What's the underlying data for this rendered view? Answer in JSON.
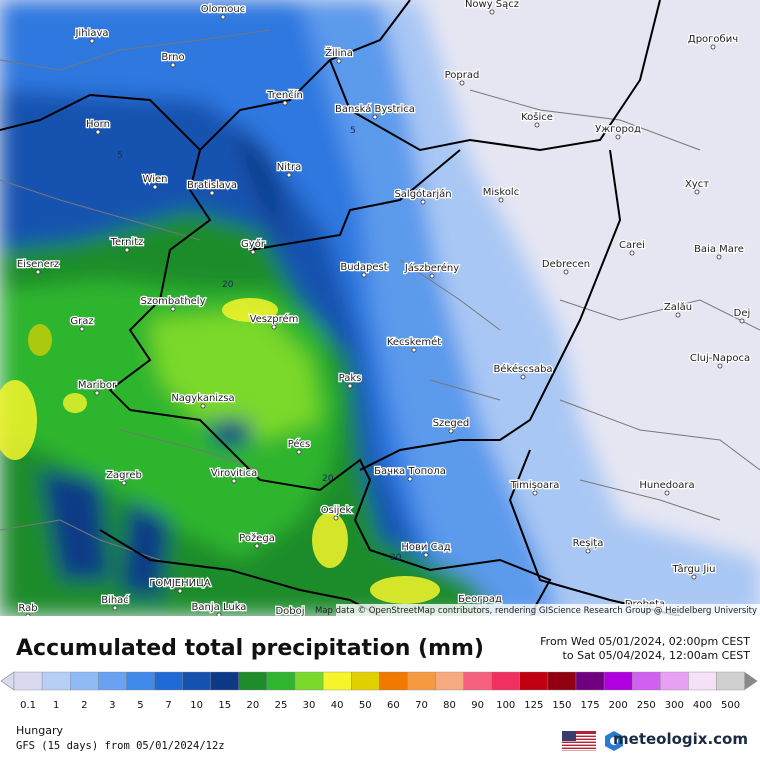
{
  "map": {
    "cities": [
      "Olomouc",
      "Nowy Sącz",
      "Jihlava",
      "Žilina",
      "Дрогобич",
      "Brno",
      "Poprad",
      "Trenčín",
      "Banská Bystrica",
      "Horn",
      "Košice",
      "Ужгород",
      "Nitra",
      "Wien",
      "Bratislava",
      "Salgótarján",
      "Miskolc",
      "Хуст",
      "Ternitz",
      "Győr",
      "Carei",
      "Baia Mare",
      "Eisenerz",
      "Budapest",
      "Jászberény",
      "Debrecen",
      "Szombathely",
      "Zalău",
      "Graz",
      "Veszprém",
      "Dej",
      "Kecskemét",
      "Cluj-Napoca",
      "Maribor",
      "Paks",
      "Békéscsaba",
      "Nagykanizsa",
      "Szeged",
      "Pécs",
      "Zagreb",
      "Virovitica",
      "Бачка Топола",
      "Timișoara",
      "Hunedoara",
      "Osijek",
      "Požega",
      "Нови Сад",
      "Reșița",
      "Târgu Jiu",
      "Bihać",
      "ГОМЈЕНИЦА",
      "Banja Luka",
      "Doboj",
      "Београд",
      "Drobeta",
      "Rab"
    ],
    "contour_labels": [
      "5",
      "5",
      "20",
      "20",
      "20"
    ],
    "attribution": "Map data © OpenStreetMap contributors, rendering GIScience Research Group @ Heidelberg University"
  },
  "header": {
    "title": "Accumulated total precipitation (mm)",
    "from": "From Wed 05/01/2024, 02:00pm CEST",
    "to": "to Sat 05/04/2024, 12:00am CEST"
  },
  "legend": {
    "items": [
      {
        "value": 0.1,
        "color": "#d9d9f0"
      },
      {
        "value": 1,
        "color": "#b7cff6"
      },
      {
        "value": 2,
        "color": "#8fbaf6"
      },
      {
        "value": 3,
        "color": "#68a2f0"
      },
      {
        "value": 5,
        "color": "#3f8ae8"
      },
      {
        "value": 7,
        "color": "#1f6ad6"
      },
      {
        "value": 10,
        "color": "#1552b0"
      },
      {
        "value": 15,
        "color": "#0d3a86"
      },
      {
        "value": 20,
        "color": "#1e8c2a"
      },
      {
        "value": 25,
        "color": "#2fb52f"
      },
      {
        "value": 30,
        "color": "#7ad92a"
      },
      {
        "value": 40,
        "color": "#f5f52a"
      },
      {
        "value": 50,
        "color": "#e0d000"
      },
      {
        "value": 60,
        "color": "#f07a00"
      },
      {
        "value": 70,
        "color": "#f59a40"
      },
      {
        "value": 80,
        "color": "#f5aa80"
      },
      {
        "value": 90,
        "color": "#f56080"
      },
      {
        "value": 100,
        "color": "#f03060"
      },
      {
        "value": 125,
        "color": "#c00010"
      },
      {
        "value": 150,
        "color": "#900010"
      },
      {
        "value": 175,
        "color": "#700080"
      },
      {
        "value": 200,
        "color": "#b000e0"
      },
      {
        "value": 250,
        "color": "#d060f0"
      },
      {
        "value": 300,
        "color": "#e8a0f5"
      },
      {
        "value": 400,
        "color": "#f5e0f8"
      },
      {
        "value": 500,
        "color": "#d0d0d0"
      }
    ]
  },
  "footer": {
    "region": "Hungary",
    "model": "GFS (15 days) from 05/01/2024/12z",
    "logo": "meteologix.com"
  }
}
